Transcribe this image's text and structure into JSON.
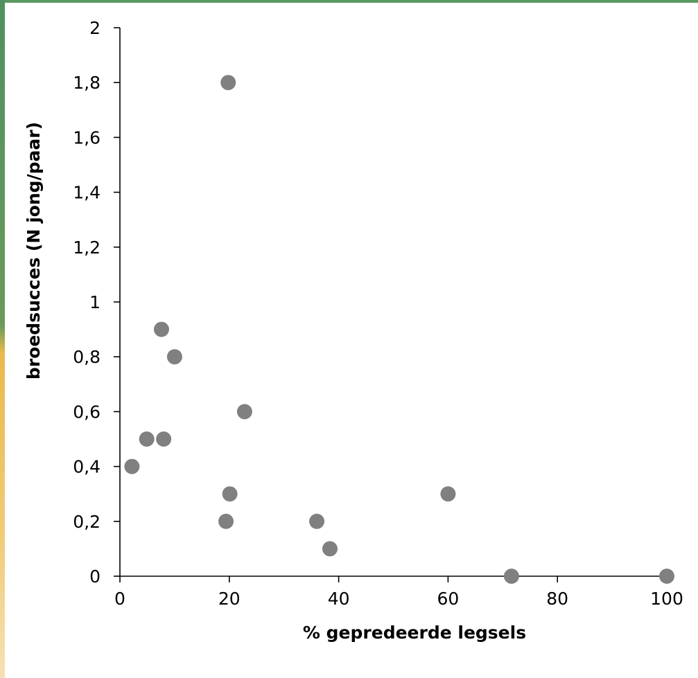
{
  "colors": {
    "border_green": "#5a9a62",
    "border_yellow": "#e9b94c",
    "point": "#808080",
    "axis": "#000000"
  },
  "chart_data": {
    "type": "scatter",
    "title": "",
    "xlabel": "% gepredeerde legsels",
    "ylabel": "broedsucces (N jong/paar)",
    "xlim": [
      0,
      100
    ],
    "ylim": [
      0,
      2
    ],
    "x_ticks": [
      0,
      20,
      40,
      60,
      80,
      100
    ],
    "x_tick_labels": [
      "0",
      "20",
      "40",
      "60",
      "80",
      "100"
    ],
    "y_ticks": [
      0,
      0.2,
      0.4,
      0.6,
      0.8,
      1,
      1.2,
      1.4,
      1.6,
      1.8,
      2
    ],
    "y_tick_labels": [
      "0",
      "0,2",
      "0,4",
      "0,6",
      "0,8",
      "1",
      "1,2",
      "1,4",
      "1,6",
      "1,8",
      "2"
    ],
    "grid": false,
    "legend": "none",
    "points": [
      {
        "x": 19.8,
        "y": 1.8
      },
      {
        "x": 7.6,
        "y": 0.9
      },
      {
        "x": 10.0,
        "y": 0.8
      },
      {
        "x": 22.8,
        "y": 0.6
      },
      {
        "x": 4.9,
        "y": 0.5
      },
      {
        "x": 8.0,
        "y": 0.5
      },
      {
        "x": 2.2,
        "y": 0.4
      },
      {
        "x": 20.1,
        "y": 0.3
      },
      {
        "x": 60.0,
        "y": 0.3
      },
      {
        "x": 19.4,
        "y": 0.2
      },
      {
        "x": 36.0,
        "y": 0.2
      },
      {
        "x": 38.4,
        "y": 0.1
      },
      {
        "x": 71.6,
        "y": 0.0
      },
      {
        "x": 100.0,
        "y": 0.0
      }
    ]
  }
}
